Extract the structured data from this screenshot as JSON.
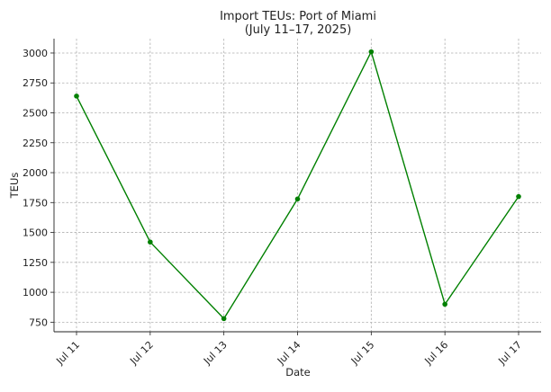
{
  "chart_data": {
    "type": "line",
    "title": "Import TEUs: Port of Miami",
    "subtitle": "(July 11–17, 2025)",
    "xlabel": "Date",
    "ylabel": "TEUs",
    "categories": [
      "Jul 11",
      "Jul 12",
      "Jul 13",
      "Jul 14",
      "Jul 15",
      "Jul 16",
      "Jul 17"
    ],
    "series": [
      {
        "values": [
          2640,
          1420,
          780,
          1780,
          3010,
          900,
          1800
        ],
        "color": "#008000",
        "marker": "circle"
      }
    ],
    "ylim": [
      670,
      3120
    ],
    "yticks": [
      750,
      1000,
      1250,
      1500,
      1750,
      2000,
      2250,
      2500,
      2750,
      3000
    ],
    "grid": true,
    "grid_style": "dashed",
    "legend": "none"
  }
}
